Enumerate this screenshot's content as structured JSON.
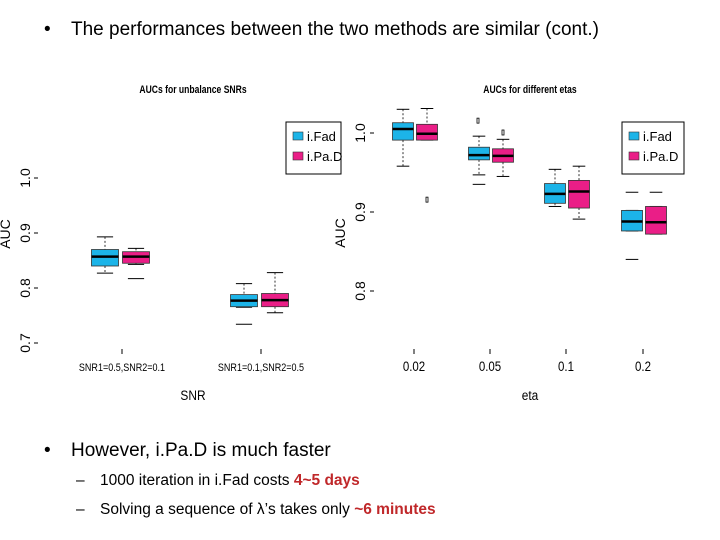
{
  "bullets": {
    "top": "The performances between the two methods are similar (cont.)",
    "bottom": "However, i.Pa.D is much faster",
    "sub1": {
      "prefix": "1000 iteration in i.Fad costs ",
      "highlight": "4~5 days"
    },
    "sub2": {
      "prefix": "Solving a sequence of λ’s takes only ",
      "highlight": "~6 minutes"
    }
  },
  "colors": {
    "ifad": "#1cb4e8",
    "ipad": "#ea1e87",
    "highlight": "#c0282a"
  },
  "chart_data": [
    {
      "type": "boxplot",
      "title": "AUCs for unbalance SNRs",
      "xlabel": "SNR",
      "ylabel": "AUC",
      "ylim": [
        0.7,
        1.0
      ],
      "yticks": [
        "0.7",
        "0.8",
        "0.9",
        "1.0"
      ],
      "categories": [
        "SNR1=0.5,SNR2=0.1",
        "SNR1=0.1,SNR2=0.5"
      ],
      "legend": [
        "i.Fad",
        "i.Pa.D"
      ],
      "series": [
        {
          "name": "i.Fad",
          "boxes": [
            {
              "whislo": 0.827,
              "q1": 0.84,
              "med": 0.857,
              "q3": 0.87,
              "whishi": 0.893,
              "fliers": []
            },
            {
              "whislo": 0.765,
              "q1": 0.766,
              "med": 0.777,
              "q3": 0.788,
              "whishi": 0.808,
              "fliers": [
                0.734
              ]
            }
          ]
        },
        {
          "name": "i.Pa.D",
          "boxes": [
            {
              "whislo": 0.843,
              "q1": 0.845,
              "med": 0.857,
              "q3": 0.866,
              "whishi": 0.872,
              "fliers": [
                0.817
              ]
            },
            {
              "whislo": 0.755,
              "q1": 0.766,
              "med": 0.778,
              "q3": 0.79,
              "whishi": 0.828,
              "fliers": []
            }
          ]
        }
      ]
    },
    {
      "type": "boxplot",
      "title": "AUCs for different etas",
      "xlabel": "eta",
      "ylabel": "AUC",
      "ylim": [
        0.75,
        1.02
      ],
      "yticks": [
        "0.8",
        "0.9",
        "1.0"
      ],
      "categories": [
        "0.02",
        "0.05",
        "0.1",
        "0.2"
      ],
      "legend": [
        "i.Fad",
        "i.Pa.D"
      ],
      "series": [
        {
          "name": "i.Fad",
          "boxes": [
            {
              "whislo": 0.958,
              "q1": 0.991,
              "med": 1.005,
              "q3": 1.013,
              "whishi": 1.03,
              "fliers": []
            },
            {
              "whislo": 0.947,
              "q1": 0.966,
              "med": 0.972,
              "q3": 0.982,
              "whishi": 0.996,
              "fliers": [
                0.935
              ]
            },
            {
              "whislo": 0.907,
              "q1": 0.911,
              "med": 0.923,
              "q3": 0.936,
              "whishi": 0.954,
              "fliers": []
            },
            {
              "whislo": 0.876,
              "q1": 0.876,
              "med": 0.888,
              "q3": 0.902,
              "whishi": 0.902,
              "fliers": [
                0.925,
                0.84
              ]
            }
          ]
        },
        {
          "name": "i.Pa.D",
          "boxes": [
            {
              "whislo": 0.991,
              "q1": 0.991,
              "med": 0.999,
              "q3": 1.011,
              "whishi": 1.031,
              "fliers": []
            },
            {
              "whislo": 0.945,
              "q1": 0.963,
              "med": 0.971,
              "q3": 0.98,
              "whishi": 0.992,
              "fliers": []
            },
            {
              "whislo": 0.891,
              "q1": 0.905,
              "med": 0.926,
              "q3": 0.94,
              "whishi": 0.958,
              "fliers": []
            },
            {
              "whislo": 0.872,
              "q1": 0.872,
              "med": 0.887,
              "q3": 0.907,
              "whishi": 0.907,
              "fliers": [
                0.925
              ]
            }
          ]
        }
      ],
      "outliers_top": [
        1.015,
        1.0,
        0.915
      ]
    }
  ]
}
